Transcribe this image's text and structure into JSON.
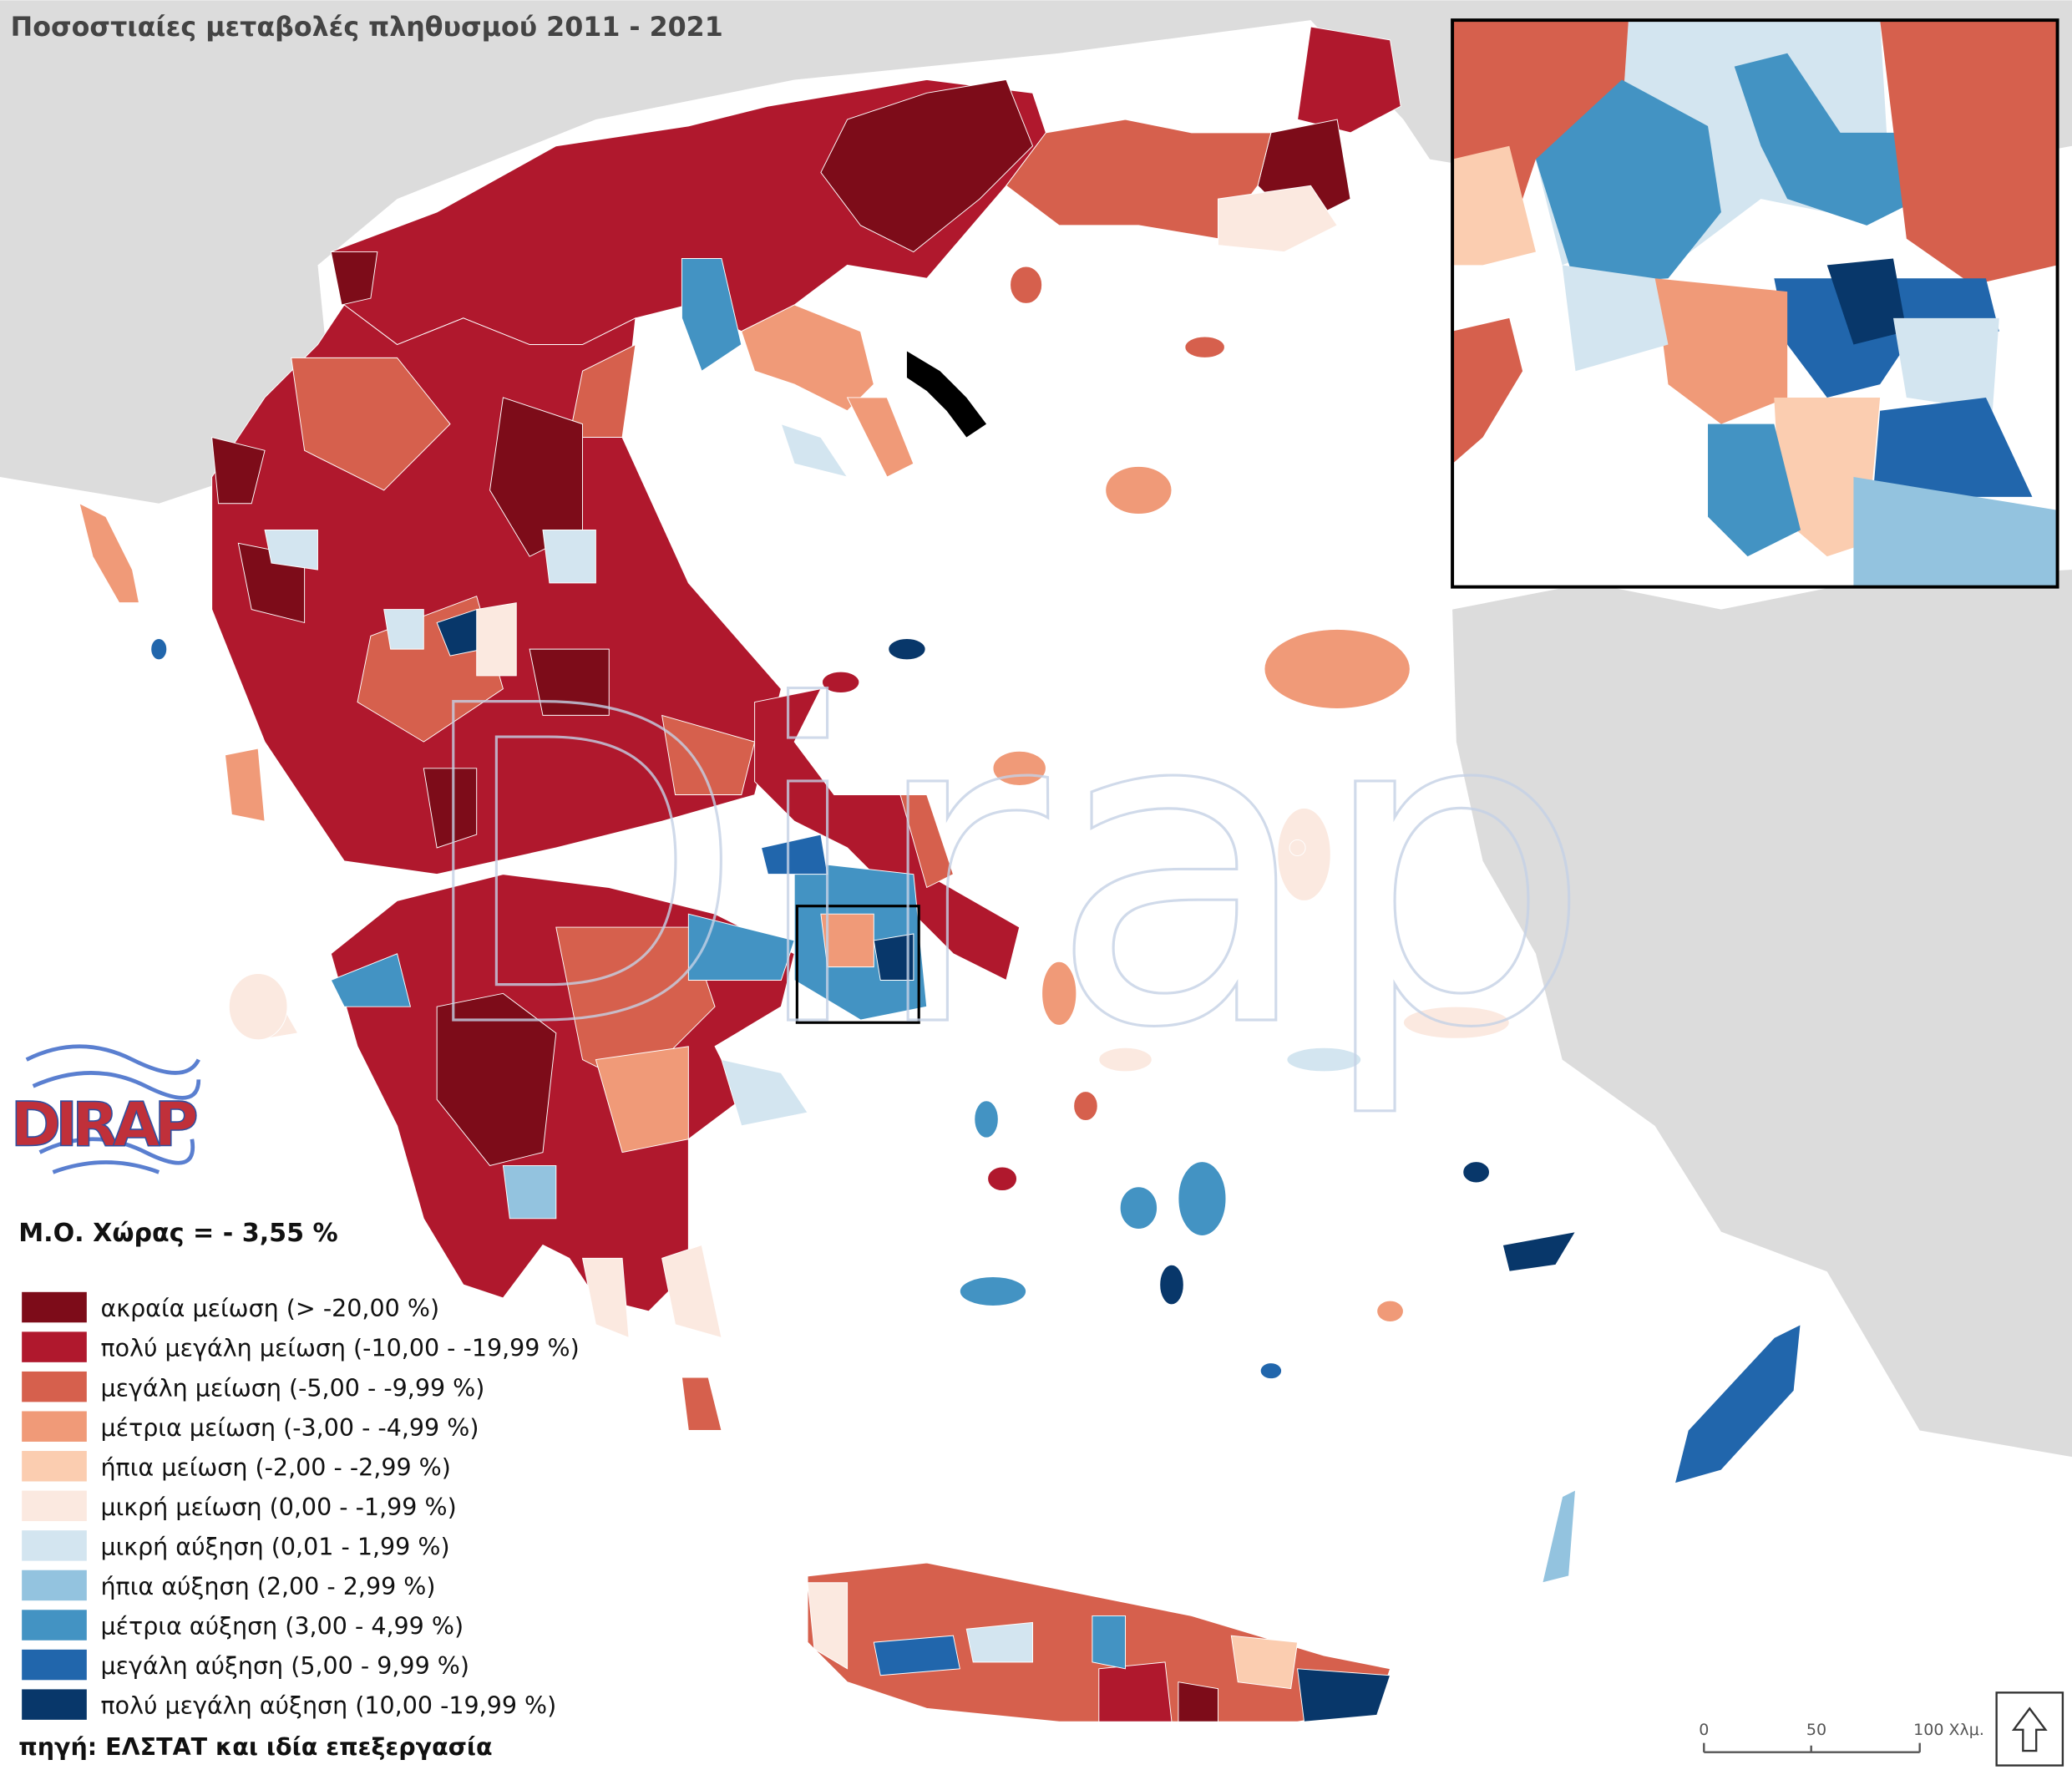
{
  "header": {
    "title": "Ποσοστιαίες μεταβολές πληθυσμού 2011 - 2021"
  },
  "average": "Μ.Ο. Χώρας = - 3,55 %",
  "legend": {
    "items": [
      {
        "label": "ακραία μείωση (> -20,00 %)",
        "color": "#7d0c19"
      },
      {
        "label": "πολύ μεγάλη μείωση (-10,00 - -19,99 %)",
        "color": "#b0182d"
      },
      {
        "label": "μεγάλη μείωση (-5,00 - -9,99 %)",
        "color": "#d6604d"
      },
      {
        "label": "μέτρια μείωση (-3,00 - -4,99 %)",
        "color": "#f09a78"
      },
      {
        "label": "ήπια μείωση (-2,00 - -2,99 %)",
        "color": "#fbcdb0"
      },
      {
        "label": "μικρή μείωση (0,00 - -1,99 %)",
        "color": "#fbe9e0"
      },
      {
        "label": "μικρή αύξηση (0,01 - 1,99 %)",
        "color": "#d3e5f0"
      },
      {
        "label": "ήπια αύξηση (2,00 - 2,99 %)",
        "color": "#93c3df"
      },
      {
        "label": "μέτρια αύξηση (3,00 - 4,99 %)",
        "color": "#4393c3"
      },
      {
        "label": "μεγάλη αύξηση (5,00 - 9,99 %)",
        "color": "#2166ac"
      },
      {
        "label": "πολύ μεγάλη αύξηση (10,00 -19,99 %)",
        "color": "#08376a"
      }
    ]
  },
  "source": "πηγή: ΕΛΣΤΑΤ και ιδία επεξεργασία",
  "scale_bar": {
    "labels": [
      "0",
      "50",
      "100 Χλμ."
    ]
  },
  "logo": "DIRAP",
  "watermark": "Dirap"
}
